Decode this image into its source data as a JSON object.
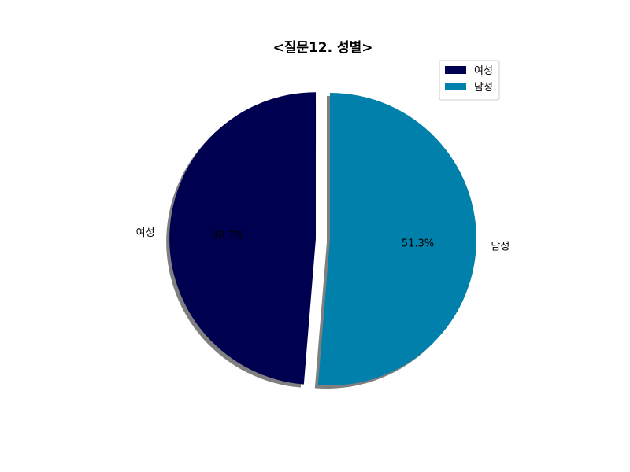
{
  "chart_data": {
    "type": "pie",
    "title": "<질문12. 성별>",
    "categories": [
      "여성",
      "남성"
    ],
    "values": [
      48.7,
      51.3
    ],
    "value_labels": [
      "48.7%",
      "51.3%"
    ],
    "colors": [
      "#000050",
      "#0080aa"
    ],
    "exploded": [
      "여성"
    ],
    "shadow": true,
    "start": "top",
    "direction": "counterclockwise",
    "legend": {
      "placement": "top-right",
      "entries": [
        "여성",
        "남성"
      ]
    }
  }
}
